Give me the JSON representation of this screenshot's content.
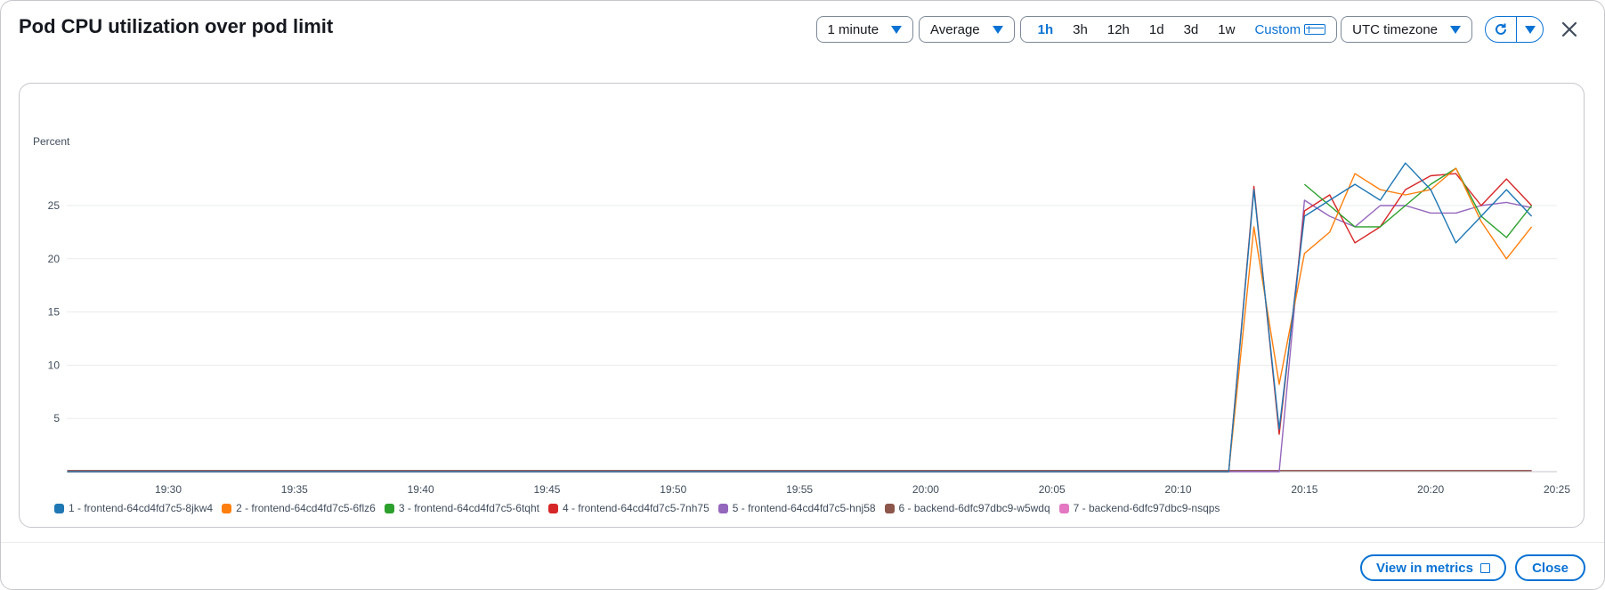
{
  "modal": {
    "title": "Pod CPU utilization over pod limit",
    "period": "1 minute",
    "statistic": "Average",
    "ranges": [
      "1h",
      "3h",
      "12h",
      "1d",
      "3d",
      "1w"
    ],
    "active_range": "1h",
    "custom_label": "Custom",
    "timezone": "UTC timezone",
    "footer": {
      "view_in_metrics": "View in metrics",
      "close": "Close"
    }
  },
  "icons": {
    "refresh": "refresh-icon",
    "dropdown": "caret-down-icon",
    "close": "close-icon",
    "calendar": "calendar-icon",
    "external": "external-link-icon"
  },
  "colors": {
    "accent": "#0972d3"
  },
  "chart_data": {
    "type": "line",
    "title": "",
    "ylabel": "Percent",
    "ylim": [
      0,
      30
    ],
    "yticks": [
      5,
      10,
      15,
      20,
      25
    ],
    "xticks": [
      "19:30",
      "19:35",
      "19:40",
      "19:45",
      "19:50",
      "19:55",
      "20:00",
      "20:05",
      "20:10",
      "20:15",
      "20:20",
      "20:25"
    ],
    "xlim_minutes": [
      26.0,
      85.0
    ],
    "grid": true,
    "legend_position": "bottom",
    "series": [
      {
        "name": "1 - frontend-64cd4fd7c5-8jkw4",
        "color": "#1f77b4",
        "x": [
          26,
          72,
          73,
          74,
          75,
          76,
          77,
          78,
          79,
          80,
          81,
          82,
          83,
          84
        ],
        "y": [
          0,
          0,
          26.5,
          4,
          24,
          25.5,
          27,
          25.5,
          29,
          26.5,
          21.5,
          24,
          26.5,
          24
        ]
      },
      {
        "name": "2 - frontend-64cd4fd7c5-6flz6",
        "color": "#ff7f0e",
        "x": [
          26,
          72,
          73,
          74,
          75,
          76,
          77,
          78,
          79,
          80,
          81,
          82,
          83,
          84
        ],
        "y": [
          0,
          0,
          23,
          8.2,
          20.5,
          22.5,
          28,
          26.5,
          26,
          26.5,
          28.5,
          23.5,
          20,
          23
        ]
      },
      {
        "name": "3 - frontend-64cd4fd7c5-6tqht",
        "color": "#2ca02c",
        "x": [
          75,
          76,
          77,
          78,
          79,
          80,
          81,
          82,
          83,
          84
        ],
        "y": [
          27,
          25,
          23,
          23,
          25,
          27,
          28.5,
          24,
          22,
          25
        ]
      },
      {
        "name": "4 - frontend-64cd4fd7c5-7nh75",
        "color": "#d62728",
        "x": [
          26,
          72,
          73,
          74,
          75,
          76,
          77,
          78,
          79,
          80,
          81,
          82,
          83,
          84
        ],
        "y": [
          0,
          0,
          26.8,
          3.5,
          24.5,
          26,
          21.5,
          23,
          26.5,
          27.8,
          28,
          25,
          27.5,
          25
        ]
      },
      {
        "name": "5 - frontend-64cd4fd7c5-hnj58",
        "color": "#9467bd",
        "x": [
          26,
          74,
          75,
          76,
          77,
          78,
          79,
          80,
          81,
          82,
          83,
          84
        ],
        "y": [
          0,
          0,
          25.5,
          24,
          23,
          25,
          25,
          24.3,
          24.3,
          25,
          25.3,
          24.8
        ]
      },
      {
        "name": "6 - backend-6dfc97dbc9-w5wdq",
        "color": "#8c564b",
        "x": [
          26,
          84
        ],
        "y": [
          0.1,
          0.1
        ]
      },
      {
        "name": "7 - backend-6dfc97dbc9-nsqps",
        "color": "#e377c2",
        "x": [
          26,
          84
        ],
        "y": [
          0.1,
          0.1
        ]
      }
    ]
  }
}
